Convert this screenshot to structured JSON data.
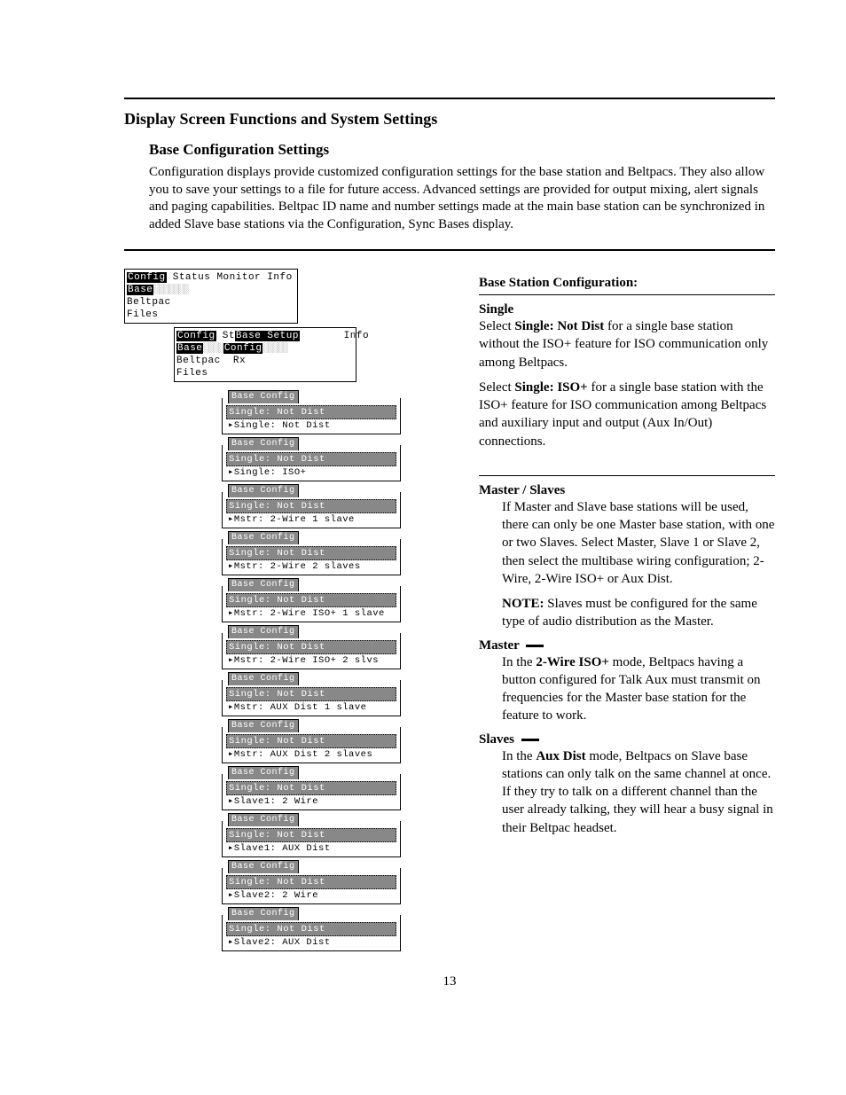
{
  "page_number": "13",
  "heading1": "Display Screen Functions and System Settings",
  "heading2": "Base Configuration Settings",
  "intro_text": "Configuration displays provide customized configuration settings for the base station and Beltpacs.  They also allow you to save your settings to a file for future access.  Advanced settings are provided for output mixing, alert signals and paging capabilities.  Beltpac ID name and number settings made at the main base station can be synchronized in added Slave base stations via the Configuration, Sync Bases display.",
  "menu_top": {
    "tabs": [
      "Config",
      "Status",
      "Monitor",
      "Info"
    ],
    "items": [
      "Base",
      "Beltpac",
      "Files"
    ]
  },
  "menu_sub": {
    "tabs_left": [
      "Config",
      "St"
    ],
    "tabs_right": "Info",
    "left_items": [
      "Base",
      "Beltpac",
      "Files"
    ],
    "popup_title": "Base Setup",
    "popup_items": [
      "Config",
      "Rx"
    ]
  },
  "config_boxes": [
    {
      "title": "Base Config",
      "selected": "Single: Not Dist",
      "other": "▸Single: Not Dist"
    },
    {
      "title": "Base Config",
      "selected": "Single: Not Dist",
      "other": "▸Single: ISO+"
    },
    {
      "title": "Base Config",
      "selected": "Single: Not Dist",
      "other": "▸Mstr: 2-Wire 1 slave"
    },
    {
      "title": "Base Config",
      "selected": "Single: Not Dist",
      "other": "▸Mstr: 2-Wire 2 slaves"
    },
    {
      "title": "Base Config",
      "selected": "Single: Not Dist",
      "other": "▸Mstr: 2-Wire ISO+ 1 slave"
    },
    {
      "title": "Base Config",
      "selected": "Single: Not Dist",
      "other": "▸Mstr: 2-Wire ISO+ 2 slvs"
    },
    {
      "title": "Base Config",
      "selected": "Single: Not Dist",
      "other": "▸Mstr: AUX Dist 1 slave"
    },
    {
      "title": "Base Config",
      "selected": "Single: Not Dist",
      "other": "▸Mstr: AUX Dist 2 slaves"
    },
    {
      "title": "Base Config",
      "selected": "Single: Not Dist",
      "other": "▸Slave1: 2 Wire"
    },
    {
      "title": "Base Config",
      "selected": "Single: Not Dist",
      "other": "▸Slave1: AUX Dist"
    },
    {
      "title": "Base Config",
      "selected": "Single: Not Dist",
      "other": "▸Slave2: 2 Wire"
    },
    {
      "title": "Base Config",
      "selected": "Single: Not Dist",
      "other": "▸Slave2: AUX Dist"
    }
  ],
  "right": {
    "title": "Base Station Configuration:",
    "single_heading": "Single",
    "single_p1a": "Select ",
    "single_p1b": "Single: Not Dist",
    "single_p1c": " for a single base station without the ISO+ feature for ISO communication only among Beltpacs.",
    "single_p2a": "Select ",
    "single_p2b": "Single: ISO+",
    "single_p2c": " for a single base station with the ISO+ feature for ISO communication among Beltpacs and auxiliary input and output (Aux In/Out) connections.",
    "ms_heading": "Master / Slaves",
    "ms_p1": "If Master and Slave base stations will be used, there can only be one Master base station, with one or two Slaves.  Select Master, Slave 1 or Slave 2, then select the multibase wiring configuration; 2-Wire, 2-Wire ISO+ or Aux Dist.",
    "ms_note_label": "NOTE:",
    "ms_note_text": "  Slaves must be configured for the same type of audio distribution as the Master.",
    "master_heading": "Master",
    "master_p1a": "In the ",
    "master_p1b": "2-Wire ISO+",
    "master_p1c": " mode, Beltpacs having a button configured for Talk Aux must transmit on frequencies for the Master base station for the feature to work.",
    "slaves_heading": "Slaves",
    "slaves_p1a": "In the ",
    "slaves_p1b": "Aux Dist",
    "slaves_p1c": " mode, Beltpacs on Slave base stations can only talk on the same channel at once.  If they try to talk on a different channel than the user already talking, they will hear a busy signal in their Beltpac headset."
  }
}
